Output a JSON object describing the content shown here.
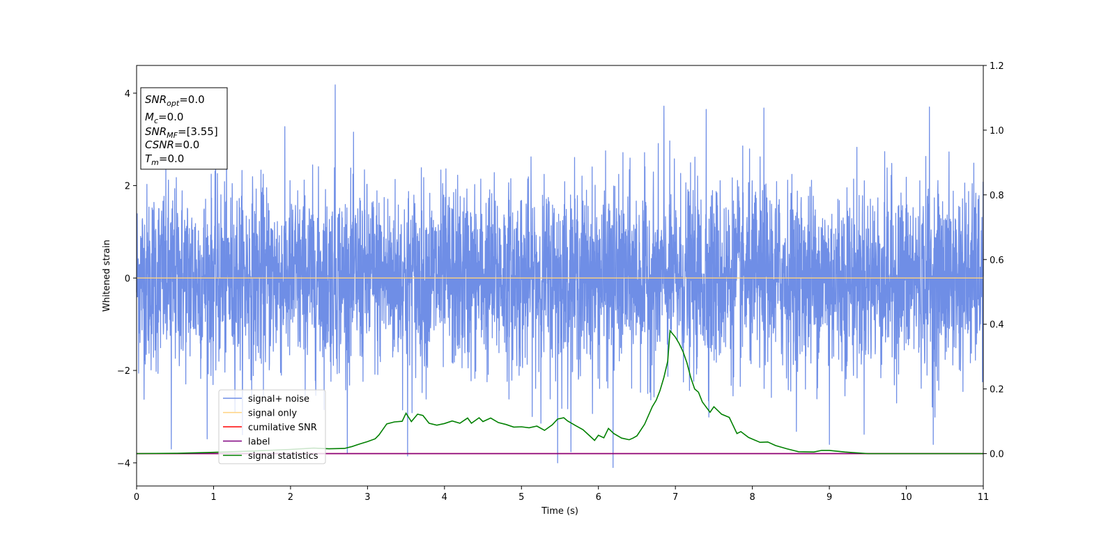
{
  "chart_data": {
    "type": "line",
    "xlabel": "Time (s)",
    "ylabel": "Whitened strain",
    "xlim": [
      0,
      11
    ],
    "ylim": [
      -4.5,
      4.6
    ],
    "y2lim": [
      -0.1,
      1.2
    ],
    "x_ticks": [
      0,
      1,
      2,
      3,
      4,
      5,
      6,
      7,
      8,
      9,
      10,
      11
    ],
    "y_ticks": [
      -4,
      -2,
      0,
      2,
      4
    ],
    "y2_ticks": [
      0.0,
      0.2,
      0.4,
      0.6,
      0.8,
      1.0,
      1.2
    ],
    "y_tick_labels": [
      "−4",
      "−2",
      "0",
      "2",
      "4"
    ],
    "y2_tick_labels": [
      "0.0",
      "0.2",
      "0.4",
      "0.6",
      "0.8",
      "1.0",
      "1.2"
    ],
    "legend_position": "lower-left",
    "grid": false,
    "info_box": {
      "position": "top-left",
      "lines": [
        {
          "base": "SNR",
          "sub": "opt",
          "value": "=0.0"
        },
        {
          "base": "M",
          "sub": "c",
          "value": "=0.0"
        },
        {
          "base": "SNR",
          "sub": "MF",
          "value": "=[3.55]"
        },
        {
          "base": "CSNR",
          "sub": "",
          "value": "=0.0"
        },
        {
          "base": "T",
          "sub": "m",
          "value": "=0.0"
        }
      ]
    },
    "series": [
      {
        "name": "signal+ noise",
        "color": "#6f8ee6",
        "axis": "left",
        "kind": "noise",
        "stats": {
          "mean": 0,
          "std": 1.0,
          "min": -4.1,
          "max": 4.2
        },
        "spikes": [
          {
            "x": 0.45,
            "y": -3.7
          },
          {
            "x": 2.58,
            "y": 4.18
          },
          {
            "x": 3.52,
            "y": -3.85
          },
          {
            "x": 5.47,
            "y": -4.0
          },
          {
            "x": 6.19,
            "y": -4.1
          },
          {
            "x": 6.85,
            "y": 3.72
          },
          {
            "x": 7.4,
            "y": 3.65
          },
          {
            "x": 9.0,
            "y": -3.6
          },
          {
            "x": 10.35,
            "y": -3.6
          },
          {
            "x": 10.3,
            "y": 3.7
          },
          {
            "x": 8.15,
            "y": 3.68
          }
        ]
      },
      {
        "name": "signal only",
        "color": "#ffd27f",
        "axis": "left",
        "x": [
          0,
          11
        ],
        "y": [
          0,
          0
        ]
      },
      {
        "name": "cumilative SNR",
        "color": "#ff0000",
        "axis": "right",
        "x": [
          0,
          11
        ],
        "y": [
          0,
          0
        ]
      },
      {
        "name": "label",
        "color": "#800080",
        "axis": "right",
        "x": [
          0,
          11
        ],
        "y": [
          0,
          0
        ]
      },
      {
        "name": "signal statistics",
        "color": "#008000",
        "axis": "right",
        "x": [
          0,
          0.5,
          1.0,
          1.5,
          2.0,
          2.3,
          2.5,
          2.7,
          2.8,
          2.9,
          3.0,
          3.1,
          3.15,
          3.25,
          3.35,
          3.45,
          3.5,
          3.57,
          3.65,
          3.72,
          3.8,
          3.9,
          4.0,
          4.1,
          4.2,
          4.3,
          4.35,
          4.45,
          4.5,
          4.6,
          4.7,
          4.8,
          4.9,
          5.0,
          5.1,
          5.2,
          5.3,
          5.4,
          5.47,
          5.55,
          5.6,
          5.7,
          5.8,
          5.9,
          5.95,
          6.0,
          6.07,
          6.13,
          6.2,
          6.3,
          6.4,
          6.45,
          6.5,
          6.6,
          6.7,
          6.75,
          6.8,
          6.85,
          6.9,
          6.93,
          7.0,
          7.05,
          7.1,
          7.15,
          7.2,
          7.25,
          7.3,
          7.35,
          7.45,
          7.5,
          7.6,
          7.7,
          7.8,
          7.85,
          7.95,
          8.0,
          8.1,
          8.2,
          8.3,
          8.45,
          8.6,
          8.8,
          8.9,
          9.0,
          9.2,
          9.5,
          10.0,
          10.5,
          11.0
        ],
        "y": [
          0.0,
          0.001,
          0.004,
          0.008,
          0.013,
          0.017,
          0.015,
          0.016,
          0.022,
          0.03,
          0.037,
          0.046,
          0.058,
          0.092,
          0.098,
          0.1,
          0.125,
          0.099,
          0.122,
          0.118,
          0.094,
          0.088,
          0.093,
          0.101,
          0.094,
          0.11,
          0.094,
          0.111,
          0.099,
          0.11,
          0.096,
          0.09,
          0.082,
          0.083,
          0.08,
          0.085,
          0.072,
          0.089,
          0.107,
          0.111,
          0.101,
          0.087,
          0.074,
          0.052,
          0.041,
          0.057,
          0.049,
          0.078,
          0.062,
          0.048,
          0.043,
          0.048,
          0.055,
          0.091,
          0.145,
          0.165,
          0.195,
          0.235,
          0.285,
          0.38,
          0.36,
          0.34,
          0.315,
          0.28,
          0.235,
          0.2,
          0.19,
          0.16,
          0.128,
          0.145,
          0.122,
          0.112,
          0.062,
          0.068,
          0.05,
          0.045,
          0.035,
          0.036,
          0.025,
          0.015,
          0.006,
          0.005,
          0.01,
          0.01,
          0.005,
          0.0,
          0.0,
          0.0,
          0.0
        ]
      }
    ]
  }
}
